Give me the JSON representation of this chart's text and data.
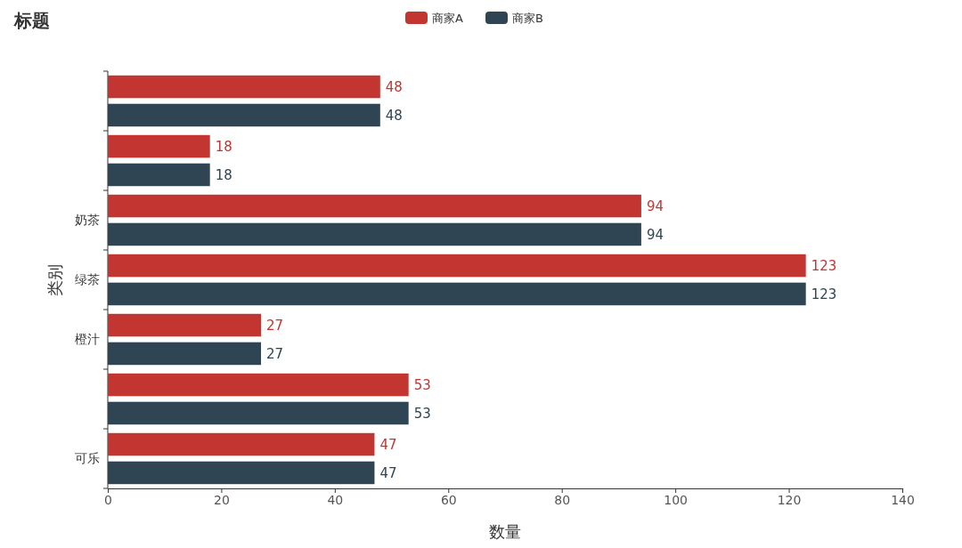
{
  "chart_data": {
    "type": "bar",
    "orientation": "horizontal",
    "title": "标题",
    "xlabel": "数量",
    "ylabel": "类别",
    "categories": [
      null,
      null,
      "奶茶",
      "绿茶",
      "橙汁",
      null,
      "可乐"
    ],
    "series": [
      {
        "name": "商家A",
        "color": "#c23531",
        "values": [
          48,
          18,
          94,
          123,
          27,
          53,
          47
        ]
      },
      {
        "name": "商家B",
        "color": "#2f4554",
        "values": [
          48,
          18,
          94,
          123,
          27,
          53,
          47
        ]
      }
    ],
    "xlim": [
      0,
      140
    ],
    "xticks": [
      0,
      20,
      40,
      60,
      80,
      100,
      120,
      140
    ],
    "data_labels": true,
    "legend": "top",
    "grid": false
  }
}
